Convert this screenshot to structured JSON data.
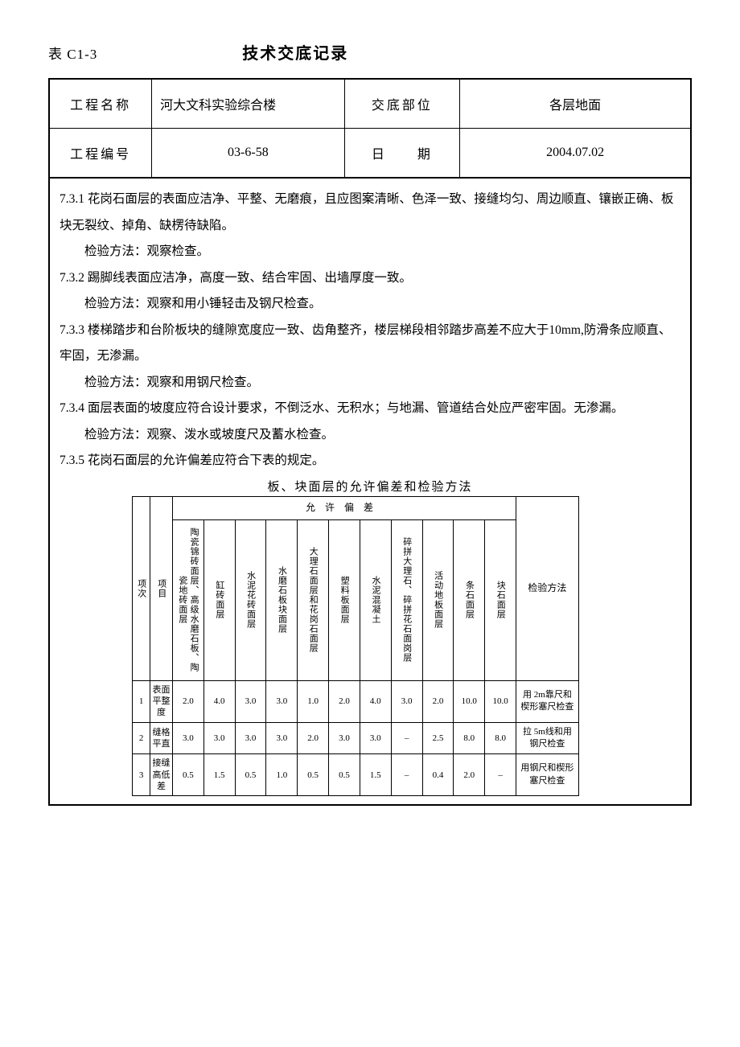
{
  "header": {
    "table_code": "表 C1-3",
    "title": "技术交底记录"
  },
  "info": {
    "project_name_label": "工程名称",
    "project_name_value": "河大文科实验综合楼",
    "position_label": "交底部位",
    "position_value": "各层地面",
    "project_no_label": "工程编号",
    "project_no_value": "03-6-58",
    "date_label": "日　　期",
    "date_value": "2004.07.02"
  },
  "paragraphs": [
    {
      "text": "7.3.1 花岗石面层的表面应洁净、平整、无磨痕，且应图案清晰、色泽一致、接缝均匀、周边顺直、镶嵌正确、板块无裂纹、掉角、缺楞待缺陷。",
      "indent": false
    },
    {
      "text": "检验方法：观察检查。",
      "indent": true
    },
    {
      "text": "7.3.2 踢脚线表面应洁净，高度一致、结合牢固、出墙厚度一致。",
      "indent": false
    },
    {
      "text": "检验方法：观察和用小锤轻击及钢尺检查。",
      "indent": true
    },
    {
      "text": "7.3.3 楼梯踏步和台阶板块的缝隙宽度应一致、齿角整齐，楼层梯段相邻踏步高差不应大于10mm,防滑条应顺直、牢固，无渗漏。",
      "indent": false
    },
    {
      "text": "检验方法：观察和用钢尺检查。",
      "indent": true
    },
    {
      "text": "7.3.4 面层表面的坡度应符合设计要求，不倒泛水、无积水；与地漏、管道结合处应严密牢固。无渗漏。",
      "indent": false
    },
    {
      "text": "检验方法：观察、泼水或坡度尺及蓄水检查。",
      "indent": true
    },
    {
      "text": "7.3.5 花岗石面层的允许偏差应符合下表的规定。",
      "indent": false
    }
  ],
  "tolerance": {
    "caption": "板、块面层的允许偏差和检验方法",
    "col1": "项次",
    "col2": "项目",
    "tolerance_header": "允许偏差",
    "method_header": "检验方法",
    "material_headers": [
      "陶瓷锦砖面层、高级水磨石板、陶瓷地砖面层",
      "缸砖面层",
      "水泥花砖面层",
      "水磨石板块面层",
      "大理石面层和花岗石面层",
      "塑料板面层",
      "水泥混凝土",
      "碎拼大理石、碎拼花石面岗层",
      "活动地板面层",
      "条石面层",
      "块石面层"
    ],
    "rows": [
      {
        "idx": "1",
        "name": "表面平整度",
        "values": [
          "2.0",
          "4.0",
          "3.0",
          "3.0",
          "1.0",
          "2.0",
          "4.0",
          "3.0",
          "2.0",
          "10.0",
          "10.0"
        ],
        "method": "用 2m靠尺和楔形塞尺检查"
      },
      {
        "idx": "2",
        "name": "缝格平直",
        "values": [
          "3.0",
          "3.0",
          "3.0",
          "3.0",
          "2.0",
          "3.0",
          "3.0",
          "–",
          "2.5",
          "8.0",
          "8.0"
        ],
        "method": "拉 5m线和用钢尺检查"
      },
      {
        "idx": "3",
        "name": "接缝高低差",
        "values": [
          "0.5",
          "1.5",
          "0.5",
          "1.0",
          "0.5",
          "0.5",
          "1.5",
          "–",
          "0.4",
          "2.0",
          "–"
        ],
        "method": "用钢尺和楔形塞尺检查"
      }
    ]
  }
}
